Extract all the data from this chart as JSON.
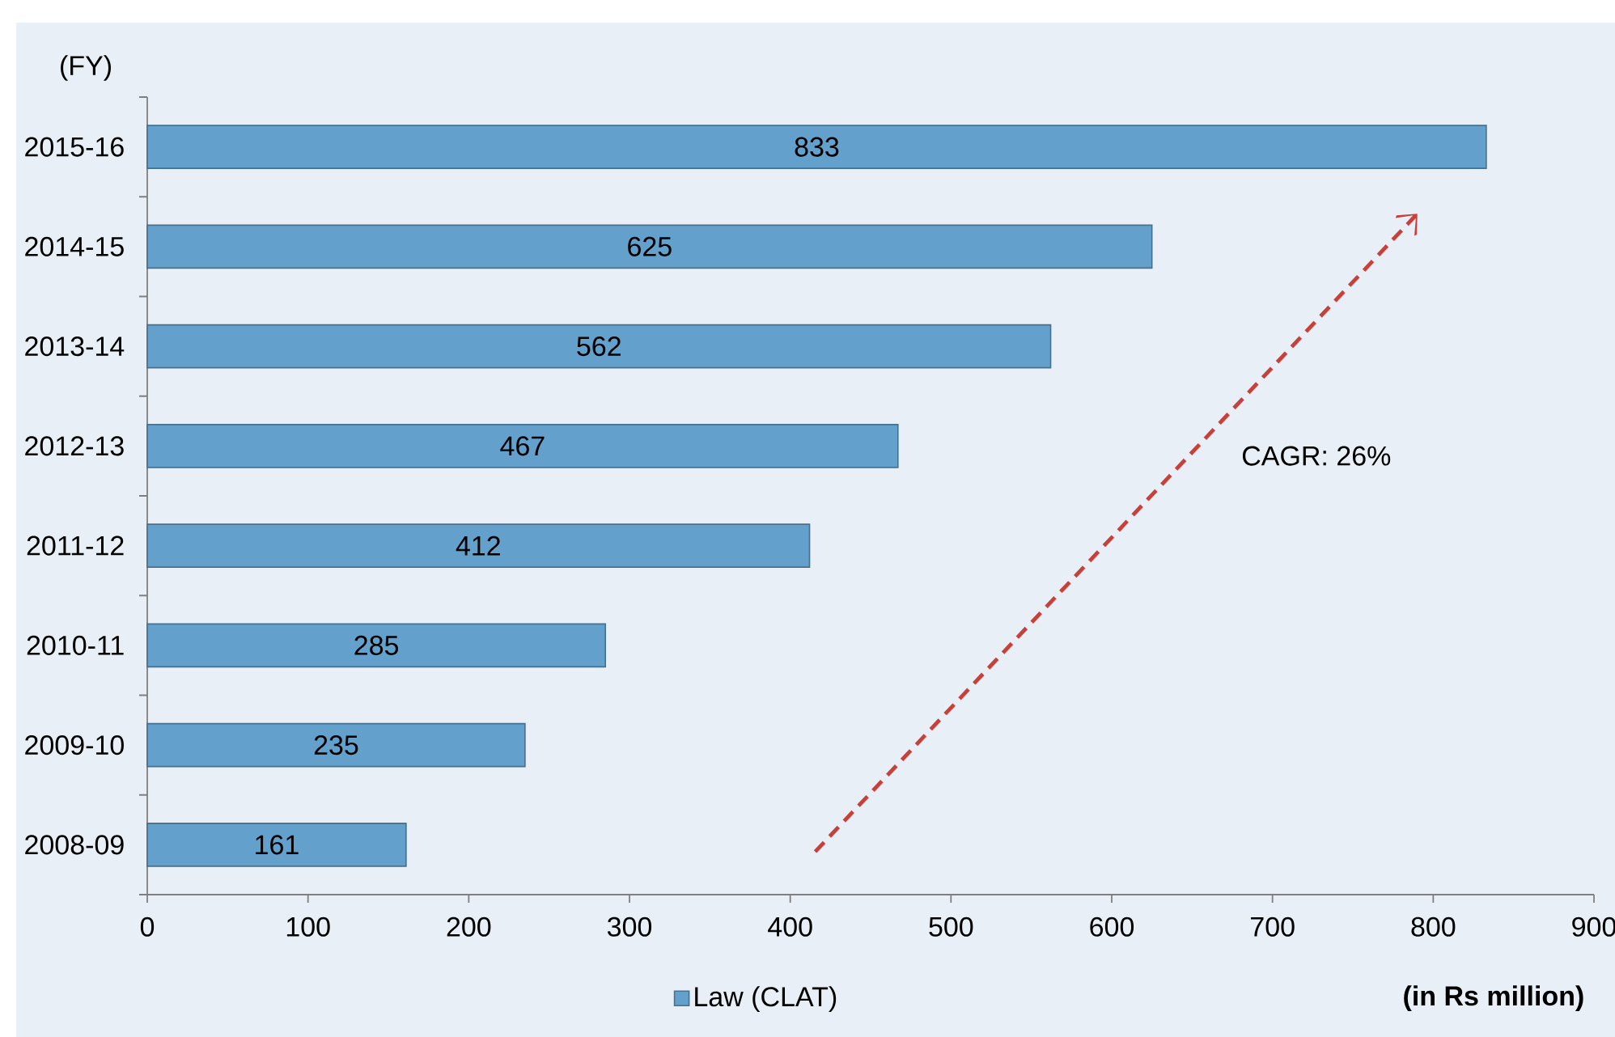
{
  "chart_data": {
    "type": "bar",
    "orientation": "horizontal",
    "ylabel": "(FY)",
    "xlabel": "(in Rs million)",
    "categories": [
      "2015-16",
      "2014-15",
      "2013-14",
      "2012-13",
      "2011-12",
      "2010-11",
      "2009-10",
      "2008-09"
    ],
    "series": [
      {
        "name": "Law (CLAT)",
        "color": "#63a0cb",
        "values": [
          833,
          625,
          562,
          467,
          412,
          285,
          235,
          161
        ]
      }
    ],
    "xlim": [
      0,
      900
    ],
    "xticks": [
      0,
      100,
      200,
      300,
      400,
      500,
      600,
      700,
      800,
      900
    ],
    "data_labels": true,
    "legend": "bottom",
    "annotations": [
      "CAGR: 26%"
    ]
  }
}
